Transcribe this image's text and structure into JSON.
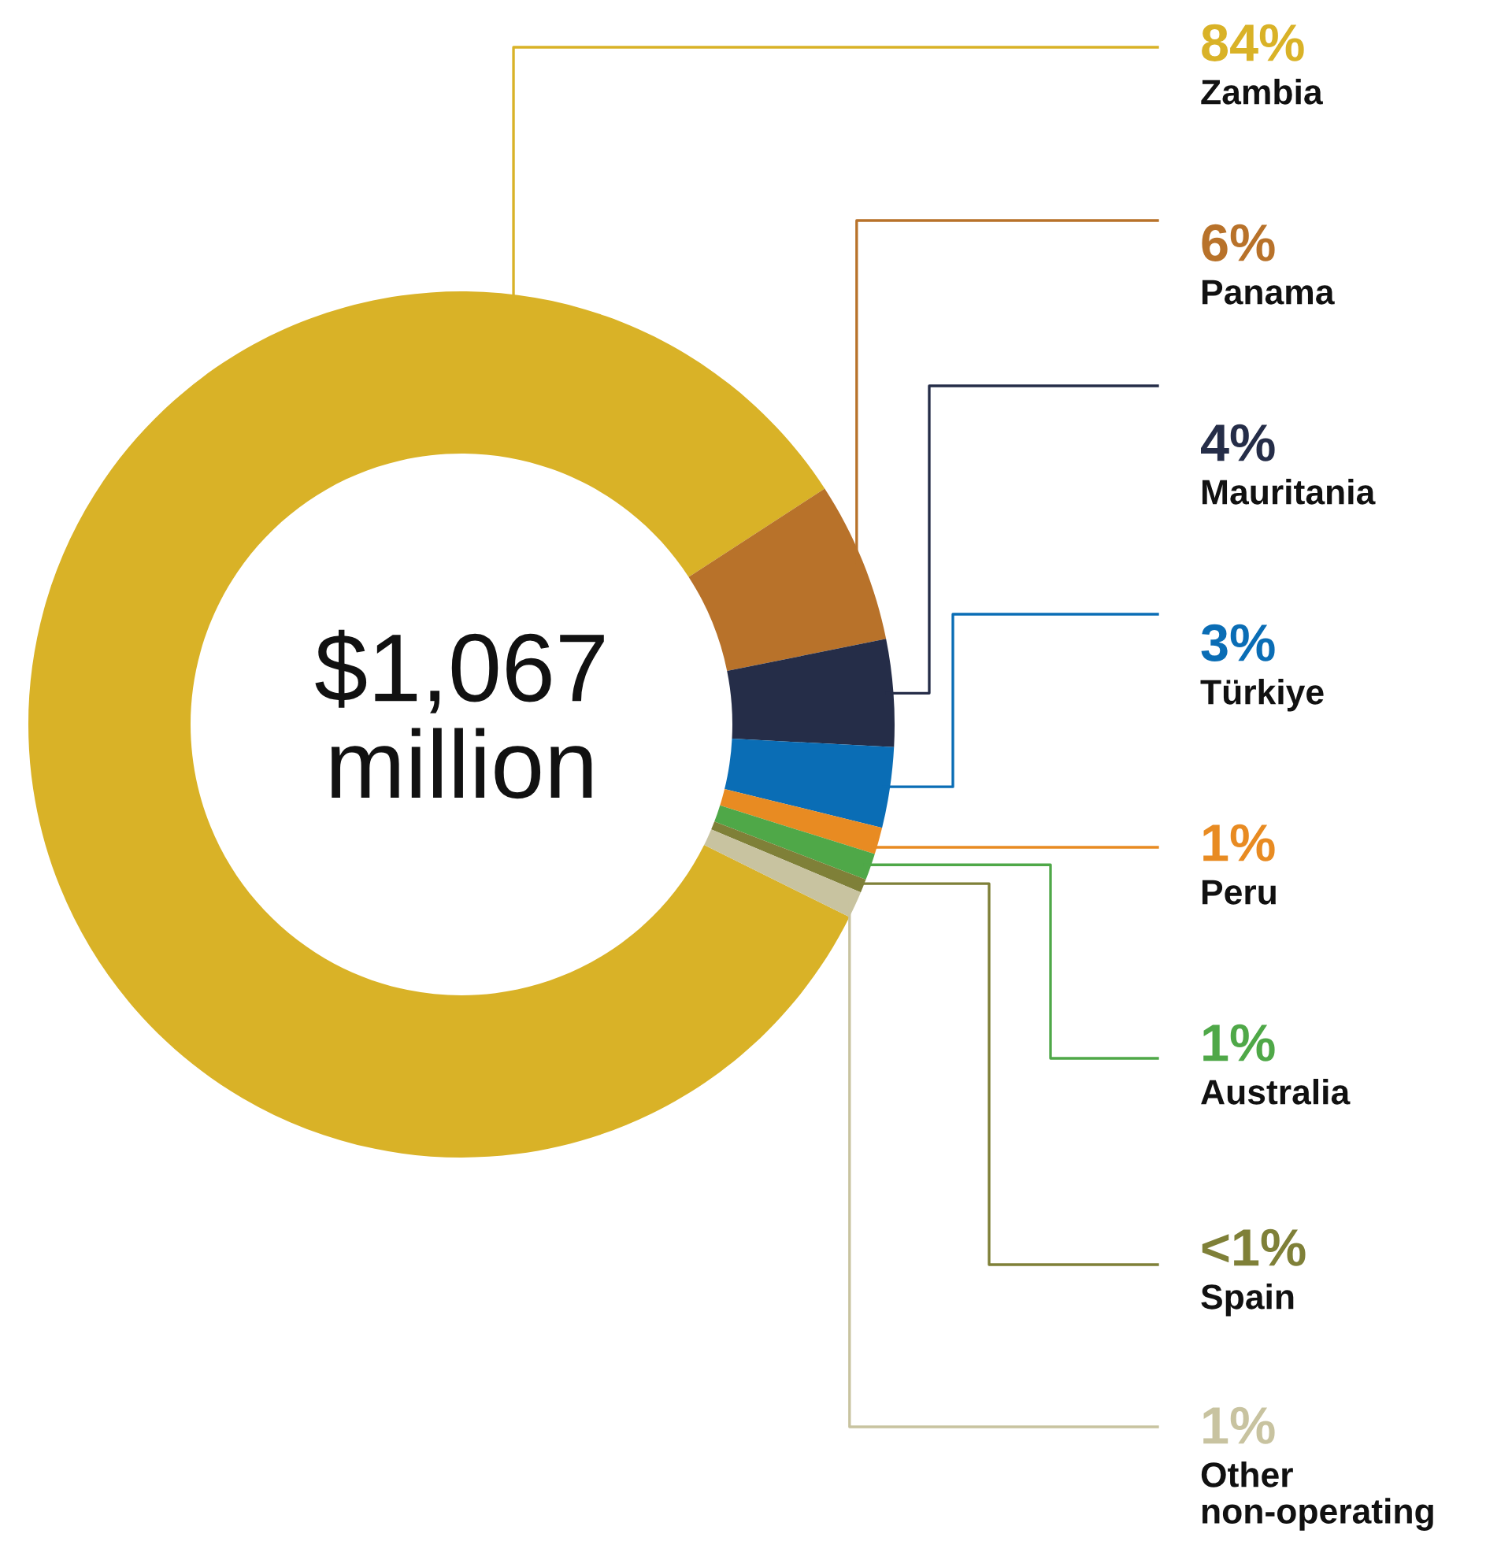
{
  "chart_data": {
    "type": "donut",
    "categories": [
      "Zambia",
      "Panama",
      "Mauritania",
      "Türkiye",
      "Peru",
      "Australia",
      "Spain",
      "Other\nnon-operating"
    ],
    "values": [
      83.5,
      6,
      4,
      3,
      1,
      1,
      0.5,
      1
    ],
    "colors": [
      "#d9b227",
      "#b8722a",
      "#252d48",
      "#0a6db5",
      "#e88b22",
      "#4fa848",
      "#7f8038",
      "#c8c3a0"
    ],
    "value_labels": [
      "84%",
      "6%",
      "4%",
      "3%",
      "1%",
      "1%",
      "<1%",
      "1%"
    ],
    "annotations": [
      "$1,067\nmillion"
    ]
  }
}
